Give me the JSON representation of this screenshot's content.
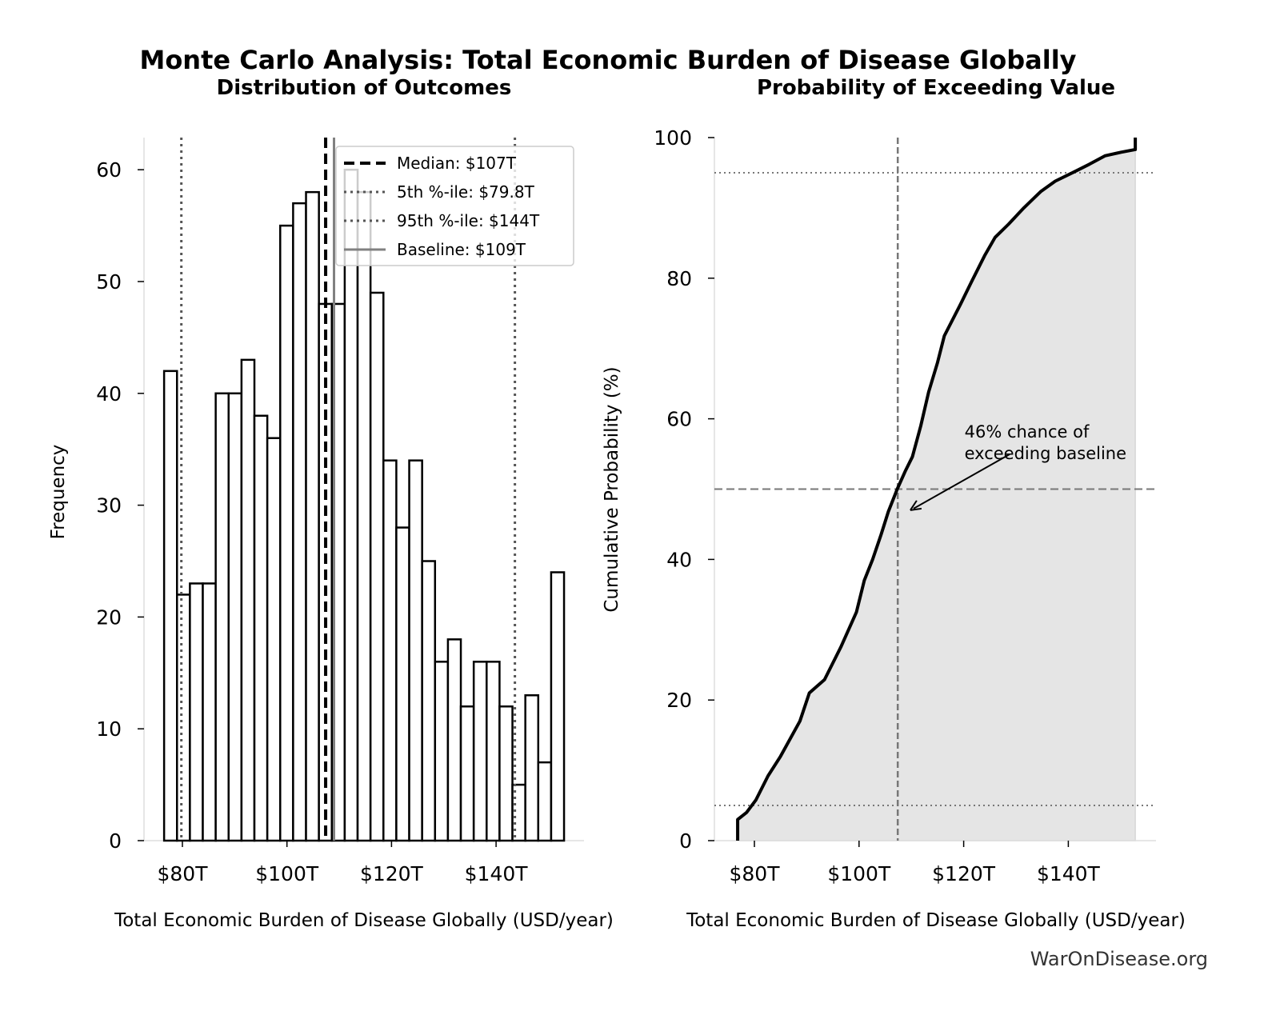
{
  "title": "Monte Carlo Analysis: Total Economic Burden of Disease Globally",
  "watermark": "WarOnDisease.org",
  "colors": {
    "bars_edge": "#000000",
    "bars_fill": "#ffffff",
    "cdf_fill": "#e5e5e5",
    "ref_lines": "#555555",
    "baseline": "#808080"
  },
  "chart_data": [
    {
      "type": "bar",
      "title": "Distribution of Outcomes",
      "xlabel": "Total Economic Burden of Disease Globally (USD/year)",
      "ylabel": "Frequency",
      "xlim": [
        72,
        155
      ],
      "ylim": [
        0,
        63
      ],
      "xticks": [
        80,
        100,
        120,
        140
      ],
      "xtick_labels": [
        "$80T",
        "$100T",
        "$120T",
        "$140T"
      ],
      "yticks": [
        0,
        10,
        20,
        30,
        40,
        50,
        60
      ],
      "ytick_labels": [
        "0",
        "10",
        "20",
        "30",
        "40",
        "50",
        "60"
      ],
      "bin_start": 76.5,
      "bin_end": 153.0,
      "values": [
        42,
        22,
        23,
        23,
        40,
        40,
        43,
        38,
        36,
        55,
        57,
        58,
        48,
        48,
        60,
        58,
        49,
        34,
        28,
        34,
        25,
        16,
        18,
        12,
        16,
        16,
        12,
        5,
        13,
        7,
        24
      ],
      "reference_lines": [
        {
          "label": "Median: $107T",
          "x": 107.4,
          "style": "dashed"
        },
        {
          "label": "5th %-ile: $79.8T",
          "x": 79.8,
          "style": "dotted"
        },
        {
          "label": "95th %-ile: $144T",
          "x": 143.6,
          "style": "dotted"
        },
        {
          "label": "Baseline: $109T",
          "x": 109.0,
          "style": "solid"
        }
      ],
      "legend": "top-right",
      "grid": false
    },
    {
      "type": "area",
      "title": "Probability of Exceeding Value",
      "xlabel": "Total Economic Burden of Disease Globally (USD/year)",
      "ylabel": "Cumulative Probability (%)",
      "xlim": [
        72,
        155
      ],
      "ylim": [
        0,
        100
      ],
      "xticks": [
        80,
        100,
        120,
        140
      ],
      "xtick_labels": [
        "$80T",
        "$100T",
        "$120T",
        "$140T"
      ],
      "yticks": [
        0,
        20,
        40,
        60,
        80,
        100
      ],
      "ytick_labels": [
        "0",
        "20",
        "40",
        "60",
        "80",
        "100"
      ],
      "x": [
        76.8,
        76.8,
        78.5,
        80.3,
        82.6,
        85.0,
        88.7,
        90.5,
        93.4,
        96.5,
        99.5,
        101.0,
        102.6,
        104.2,
        105.6,
        107.3,
        108.8,
        110.2,
        111.8,
        113.3,
        115.0,
        116.3,
        119.4,
        121.5,
        124.0,
        126.0,
        128.6,
        131.5,
        134.7,
        137.5,
        140.8,
        144.0,
        147.0,
        150.0,
        152.8,
        152.8
      ],
      "y": [
        0,
        3,
        4,
        5.8,
        9.2,
        12,
        17,
        21,
        22.9,
        27.5,
        32.5,
        37,
        40,
        43.5,
        46.8,
        50,
        52.5,
        54.6,
        59,
        63.8,
        68,
        71.8,
        76.3,
        79.5,
        83.2,
        85.8,
        87.7,
        90,
        92.3,
        93.8,
        95,
        96.2,
        97.4,
        97.9,
        98.3,
        100
      ],
      "hlines": [
        5,
        50,
        95
      ],
      "vline": 107.4,
      "annotation": {
        "line1": "46% chance of",
        "line2": "exceeding baseline",
        "xy": [
          109.8,
          47
        ],
        "xytext": [
          120,
          57
        ]
      },
      "grid": false
    }
  ]
}
